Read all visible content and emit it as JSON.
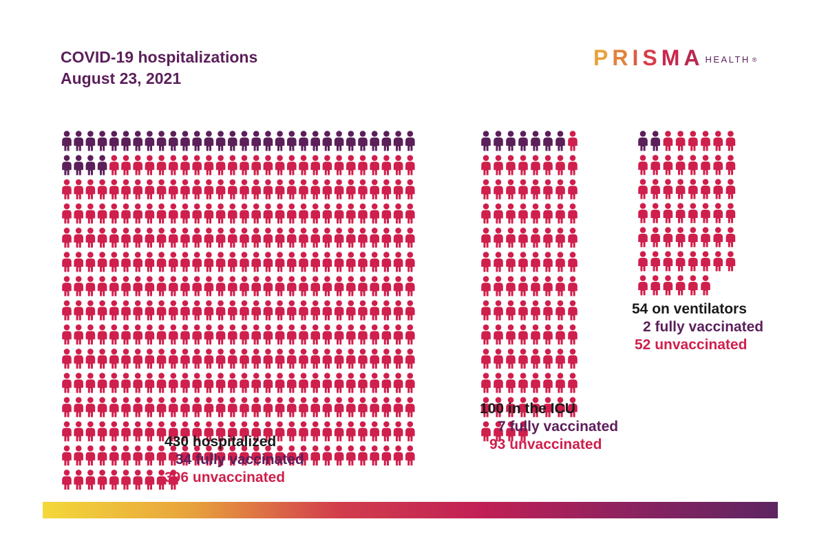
{
  "colors": {
    "vaccinated": "#5b1f5a",
    "unvaccinated": "#cf1f4c",
    "title": "#5b1f5a",
    "total": "#1a1a1a",
    "gradient": [
      "#f4d83a",
      "#e8a33c",
      "#d23e4c",
      "#c01f55",
      "#8b2360",
      "#5e2462"
    ]
  },
  "header": {
    "title_line1": "COVID-19 hospitalizations",
    "title_line2": "August 23, 2021"
  },
  "logo": {
    "letters": [
      "P",
      "R",
      "I",
      "S",
      "M",
      "A"
    ],
    "letter_colors": [
      "#e9a13a",
      "#e2823b",
      "#dd5c43",
      "#d63c4b",
      "#c8284f",
      "#b8294f"
    ],
    "suffix": "HEALTH",
    "registered": "®"
  },
  "chart_data": [
    {
      "type": "pictogram",
      "title": "430 hospitalized",
      "total": 430,
      "columns": 30,
      "series": [
        {
          "name": "fully vaccinated",
          "value": 34,
          "label": "34 fully vaccinated"
        },
        {
          "name": "unvaccinated",
          "value": 396,
          "label": "396 unvaccinated"
        }
      ]
    },
    {
      "type": "pictogram",
      "title": "100 in the ICU",
      "total": 100,
      "columns": 8,
      "series": [
        {
          "name": "fully vaccinated",
          "value": 7,
          "label": "7 fully vaccinated"
        },
        {
          "name": "unvaccinated",
          "value": 93,
          "label": "93 unvaccinated"
        }
      ]
    },
    {
      "type": "pictogram",
      "title": "54 on ventilators",
      "total": 54,
      "columns": 8,
      "series": [
        {
          "name": "fully vaccinated",
          "value": 2,
          "label": "2 fully vaccinated"
        },
        {
          "name": "unvaccinated",
          "value": 52,
          "label": "52 unvaccinated"
        }
      ]
    }
  ]
}
